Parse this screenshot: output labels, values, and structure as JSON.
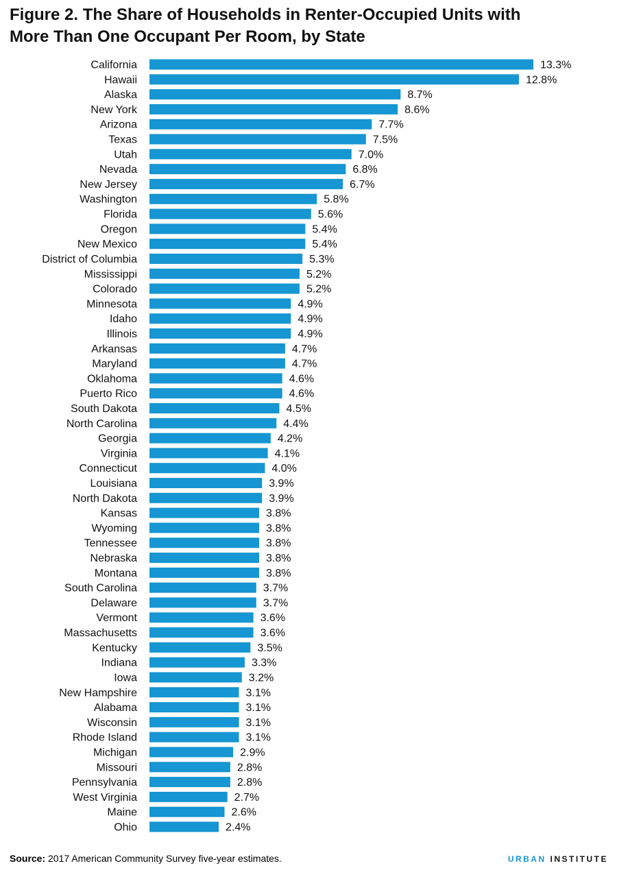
{
  "figure": {
    "title_line1": "Figure 2. The Share of Households in Renter-Occupied Units with",
    "title_line2": "More Than One Occupant Per Room, by State",
    "source_label": "Source:",
    "source_text": " 2017 American Community Survey five-year estimates.",
    "brand_part1": "URBAN",
    "brand_part2": "INSTITUTE"
  },
  "colors": {
    "bar": "#1696d2",
    "text": "#111111",
    "brand": "#1696d2"
  },
  "chart_data": {
    "type": "bar",
    "orientation": "horizontal",
    "title": "Figure 2. The Share of Households in Renter-Occupied Units with More Than One Occupant Per Room, by State",
    "xlabel": "",
    "ylabel": "",
    "xlim": [
      0,
      13.3
    ],
    "grid": false,
    "value_suffix": "%",
    "categories": [
      "California",
      "Hawaii",
      "Alaska",
      "New York",
      "Arizona",
      "Texas",
      "Utah",
      "Nevada",
      "New Jersey",
      "Washington",
      "Florida",
      "Oregon",
      "New Mexico",
      "District of Columbia",
      "Mississippi",
      "Colorado",
      "Minnesota",
      "Idaho",
      "Illinois",
      "Arkansas",
      "Maryland",
      "Oklahoma",
      "Puerto Rico",
      "South Dakota",
      "North Carolina",
      "Georgia",
      "Virginia",
      "Connecticut",
      "Louisiana",
      "North Dakota",
      "Kansas",
      "Wyoming",
      "Tennessee",
      "Nebraska",
      "Montana",
      "South Carolina",
      "Delaware",
      "Vermont",
      "Massachusetts",
      "Kentucky",
      "Indiana",
      "Iowa",
      "New Hampshire",
      "Alabama",
      "Wisconsin",
      "Rhode Island",
      "Michigan",
      "Missouri",
      "Pennsylvania",
      "West Virginia",
      "Maine",
      "Ohio"
    ],
    "values": [
      13.3,
      12.8,
      8.7,
      8.6,
      7.7,
      7.5,
      7.0,
      6.8,
      6.7,
      5.8,
      5.6,
      5.4,
      5.4,
      5.3,
      5.2,
      5.2,
      4.9,
      4.9,
      4.9,
      4.7,
      4.7,
      4.6,
      4.6,
      4.5,
      4.4,
      4.2,
      4.1,
      4.0,
      3.9,
      3.9,
      3.8,
      3.8,
      3.8,
      3.8,
      3.8,
      3.7,
      3.7,
      3.6,
      3.6,
      3.5,
      3.3,
      3.2,
      3.1,
      3.1,
      3.1,
      3.1,
      2.9,
      2.8,
      2.8,
      2.7,
      2.6,
      2.4
    ],
    "data_labels": [
      "13.3%",
      "12.8%",
      "8.7%",
      "8.6%",
      "7.7%",
      "7.5%",
      "7.0%",
      "6.8%",
      "6.7%",
      "5.8%",
      "5.6%",
      "5.4%",
      "5.4%",
      "5.3%",
      "5.2%",
      "5.2%",
      "4.9%",
      "4.9%",
      "4.9%",
      "4.7%",
      "4.7%",
      "4.6%",
      "4.6%",
      "4.5%",
      "4.4%",
      "4.2%",
      "4.1%",
      "4.0%",
      "3.9%",
      "3.9%",
      "3.8%",
      "3.8%",
      "3.8%",
      "3.8%",
      "3.8%",
      "3.7%",
      "3.7%",
      "3.6%",
      "3.6%",
      "3.5%",
      "3.3%",
      "3.2%",
      "3.1%",
      "3.1%",
      "3.1%",
      "3.1%",
      "2.9%",
      "2.8%",
      "2.8%",
      "2.7%",
      "2.6%",
      "2.4%"
    ]
  }
}
